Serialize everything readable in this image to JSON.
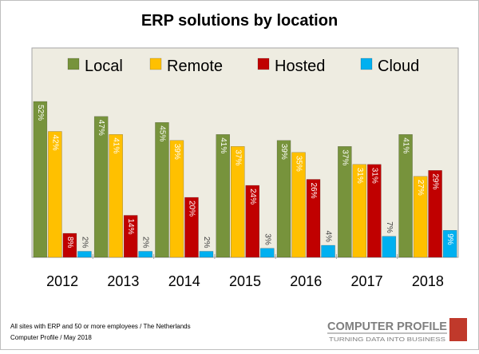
{
  "chart_data": {
    "type": "bar",
    "title": "ERP solutions by location",
    "categories": [
      "2012",
      "2013",
      "2014",
      "2015",
      "2016",
      "2017",
      "2018"
    ],
    "series": [
      {
        "name": "Local",
        "color": "#77933c",
        "values": [
          52,
          47,
          45,
          41,
          39,
          37,
          41
        ]
      },
      {
        "name": "Remote",
        "color": "#ffc000",
        "values": [
          42,
          41,
          39,
          37,
          35,
          31,
          27
        ]
      },
      {
        "name": "Hosted",
        "color": "#c00000",
        "values": [
          8,
          14,
          20,
          24,
          26,
          31,
          29
        ]
      },
      {
        "name": "Cloud",
        "color": "#00b0f0",
        "values": [
          2,
          2,
          2,
          3,
          4,
          7,
          9
        ]
      }
    ],
    "value_suffix": "%",
    "ylim": [
      0,
      60
    ],
    "grid": false,
    "legend": "top",
    "plot_background": "#eeece1"
  },
  "footer": {
    "note_line1": "All sites with ERP and 50 or more employees  / The Netherlands",
    "note_line2": "Computer Profile / May 2018"
  },
  "brand": {
    "name": "COMPUTER PROFILE",
    "tagline": "TURNING DATA INTO BUSINESS",
    "name_color": "#7f7f7f",
    "accent_color": "#c0392b"
  }
}
